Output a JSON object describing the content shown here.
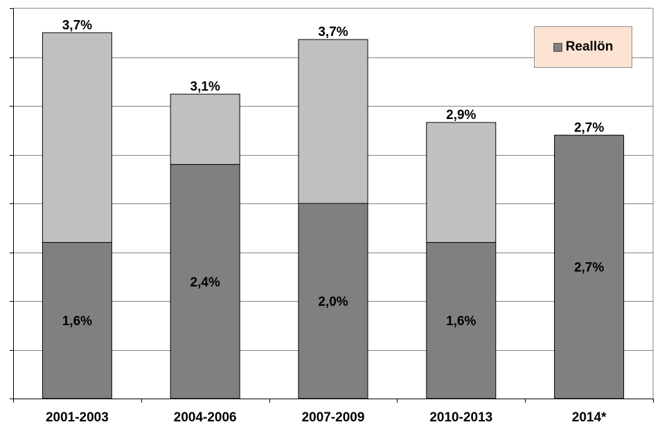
{
  "chart_data": {
    "type": "bar",
    "stacked": true,
    "categories": [
      "2001-2003",
      "2004-2006",
      "2007-2009",
      "2010-2013",
      "2014*"
    ],
    "series": [
      {
        "name": "Reallön",
        "values": [
          1.6,
          2.4,
          2.0,
          1.6,
          2.7
        ],
        "labels": [
          "1,6%",
          "2,4%",
          "2,0%",
          "1,6%",
          "2,7%"
        ]
      },
      {
        "values": [
          2.15,
          0.72,
          1.68,
          1.23,
          0.0
        ]
      }
    ],
    "totals": [
      3.7,
      3.1,
      3.7,
      2.9,
      2.7
    ],
    "total_labels": [
      "3,7%",
      "3,1%",
      "3,7%",
      "2,9%",
      "2,7%"
    ],
    "ylim": [
      0,
      4.0
    ],
    "grid": true,
    "legend_position": "top-right",
    "colors": {
      "Reallön": "#808080",
      "other": "#c0c0c0",
      "legend_bg": "#fde4d2",
      "grid": "#7f7f7f"
    }
  }
}
